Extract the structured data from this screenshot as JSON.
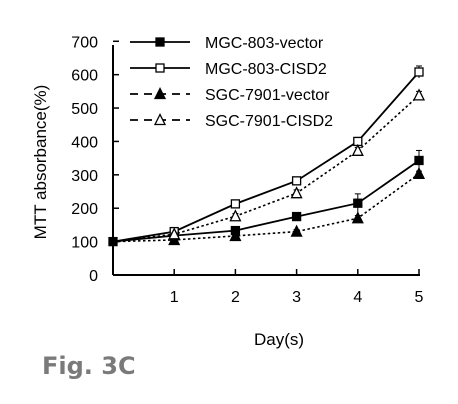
{
  "figure_label": "Fig. 3C",
  "chart_data": {
    "type": "line",
    "title": "",
    "xlabel": "Day(s)",
    "ylabel": "MTT absorbance(%)",
    "x": [
      0,
      1,
      2,
      3,
      4,
      5
    ],
    "x_tick_labels": [
      "1",
      "2",
      "3",
      "4",
      "5"
    ],
    "ylim": [
      0,
      700
    ],
    "y_ticks": [
      0,
      100,
      200,
      300,
      400,
      500,
      600,
      700
    ],
    "grid": false,
    "legend_position": "top-left",
    "series": [
      {
        "name": "MGC-803-vector",
        "values": [
          100,
          118,
          133,
          175,
          215,
          343
        ],
        "errors": [
          0,
          4,
          8,
          10,
          28,
          30
        ],
        "line": "solid",
        "marker": "filled-square",
        "color": "#000000"
      },
      {
        "name": "MGC-803-CISD2",
        "values": [
          100,
          130,
          213,
          282,
          400,
          608
        ],
        "errors": [
          0,
          5,
          8,
          8,
          12,
          18
        ],
        "line": "solid",
        "marker": "open-square",
        "color": "#000000"
      },
      {
        "name": "SGC-7901-vector",
        "values": [
          100,
          105,
          117,
          130,
          170,
          303
        ],
        "errors": [
          0,
          3,
          5,
          6,
          8,
          8
        ],
        "line": "dashed",
        "marker": "filled-triangle",
        "color": "#000000"
      },
      {
        "name": "SGC-7901-CISD2",
        "values": [
          100,
          122,
          176,
          245,
          372,
          538
        ],
        "errors": [
          0,
          4,
          8,
          10,
          10,
          12
        ],
        "line": "dashed",
        "marker": "open-triangle",
        "color": "#000000"
      }
    ]
  }
}
